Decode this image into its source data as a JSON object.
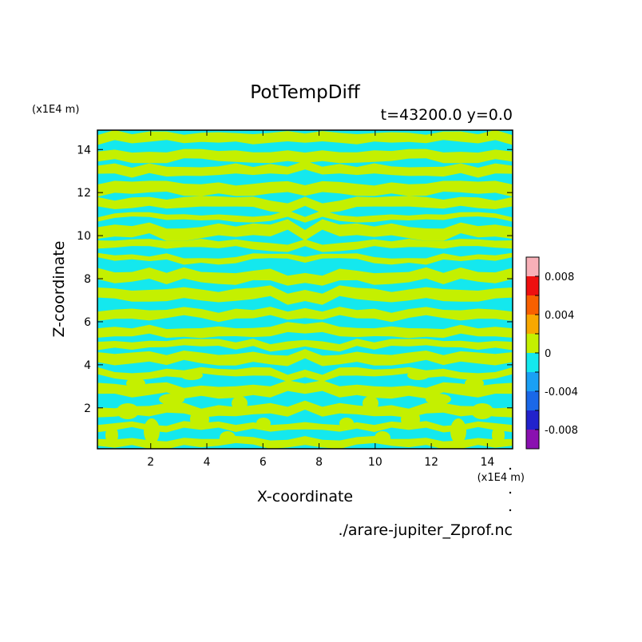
{
  "chart_data": {
    "type": "heatmap",
    "title": "PotTempDiff",
    "subtitle": "t=43200.0 y=0.0",
    "xlabel": "X-coordinate",
    "ylabel": "Z-coordinate",
    "x_unit_label": "(x1E4 m)",
    "y_unit_label": "(x1E4 m)",
    "source_label": "./arare-jupiter_Zprof.nc",
    "xlim": [
      0.1,
      14.9
    ],
    "ylim": [
      0.1,
      14.9
    ],
    "x_ticks": [
      2,
      4,
      6,
      8,
      10,
      12,
      14
    ],
    "y_ticks": [
      2,
      4,
      6,
      8,
      10,
      12,
      14
    ],
    "colorbar": {
      "levels": [
        -0.01,
        -0.008,
        -0.006,
        -0.004,
        -0.002,
        0,
        0.002,
        0.004,
        0.006,
        0.008,
        0.01
      ],
      "colors": [
        "#8a10b0",
        "#2222cc",
        "#1a68e8",
        "#1aa0f5",
        "#14e8ee",
        "#c4f000",
        "#f8a800",
        "#f86000",
        "#ee1010",
        "#f8b0b8"
      ],
      "tick_values": [
        -0.008,
        -0.004,
        0,
        0.004,
        0.008
      ],
      "tick_labels": [
        "-0.008",
        "-0.004",
        "0",
        "0.004",
        "0.008"
      ]
    },
    "field_description": "Alternating near-zero values: cyan (-0.002 to 0) and yellow-green (0 to 0.002) horizontal striped bands, mirror-symmetric about x=7.5"
  }
}
